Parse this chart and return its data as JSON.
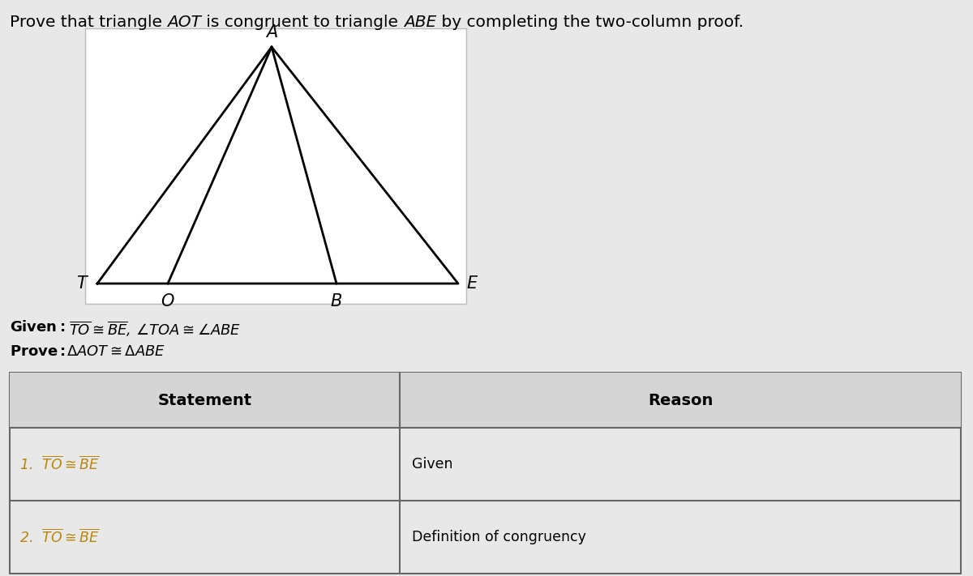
{
  "bg_color": "#e8e8e8",
  "diagram_bg": "#ffffff",
  "title_plain": "Prove that triangle ",
  "title_italic1": "AOT",
  "title_mid": " is congruent to triangle ",
  "title_italic2": "ABE",
  "title_end": " by completing the two-column proof.",
  "header_statement": "Statement",
  "header_reason": "Reason",
  "row1_statement_prefix": "1.  ",
  "row2_statement_prefix": "2.  ",
  "row1_reason": "Given",
  "row2_reason": "Definition of congruency",
  "statement_color": "#b8860b",
  "table_border_color": "#666666",
  "label_fontsize": 15,
  "title_fontsize": 14
}
